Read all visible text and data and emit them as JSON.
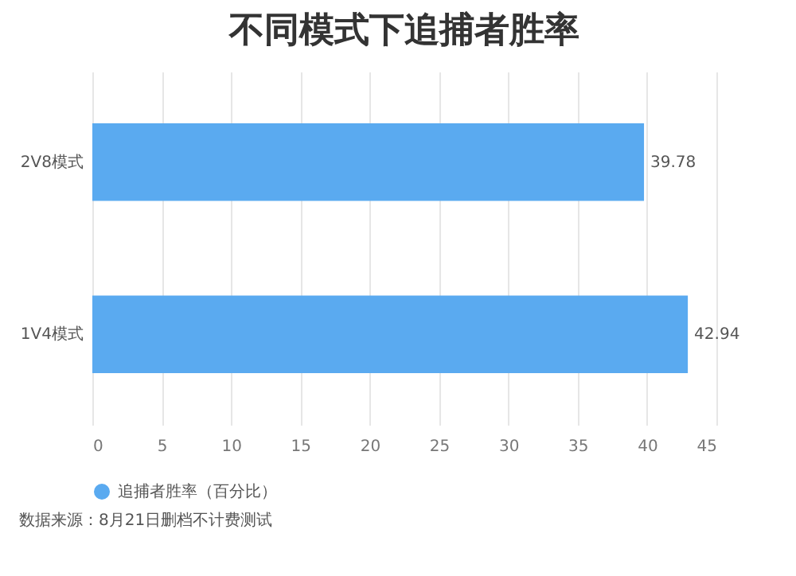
{
  "chart_data": {
    "type": "bar",
    "title": "不同模式下追捕者胜率",
    "orientation": "horizontal",
    "categories": [
      "2V8模式",
      "1V4模式"
    ],
    "series": [
      {
        "name": "追捕者胜率（百分比）",
        "color": "#5aaaf0",
        "values": [
          39.78,
          42.94
        ]
      }
    ],
    "xlim": [
      0,
      45
    ],
    "xticks": [
      0,
      5,
      10,
      15,
      20,
      25,
      30,
      35,
      40,
      45
    ],
    "grid": "x",
    "legend": "bottom",
    "data_labels": true,
    "annotations": [
      "数据来源：8月21日删档不计费测试"
    ]
  }
}
